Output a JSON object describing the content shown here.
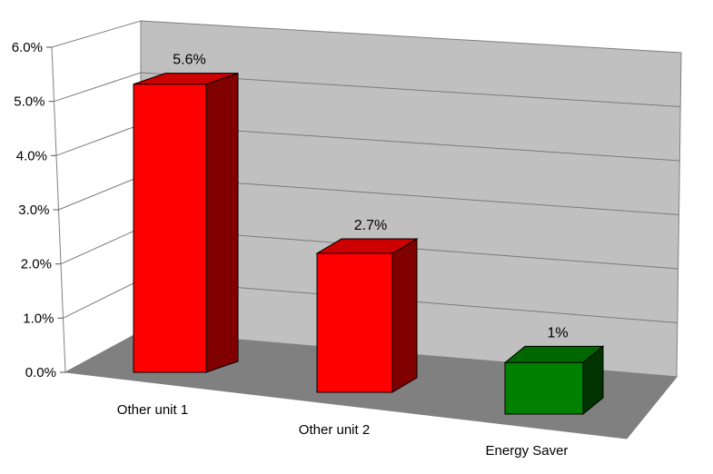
{
  "chart_data": {
    "type": "bar",
    "title": "",
    "xlabel": "",
    "ylabel": "",
    "categories": [
      "Other unit 1",
      "Other unit 2",
      "Energy Saver"
    ],
    "values": [
      5.6,
      2.7,
      1
    ],
    "data_labels": [
      "5.6%",
      "2.7%",
      "1%"
    ],
    "ylim": [
      0,
      6
    ],
    "yticks": [
      "0.0%",
      "1.0%",
      "2.0%",
      "3.0%",
      "4.0%",
      "5.0%",
      "6.0%"
    ],
    "grid": true,
    "legend": "none",
    "style": "3d-columns",
    "colors": {
      "red_front": "#ff0000",
      "red_top": "#cc0000",
      "red_side": "#800000",
      "green_front": "#008000",
      "green_top": "#006600",
      "green_side": "#003300",
      "back_wall": "#c0c0c0",
      "floor": "#808080"
    },
    "bar_colors": [
      "red",
      "red",
      "green"
    ]
  }
}
